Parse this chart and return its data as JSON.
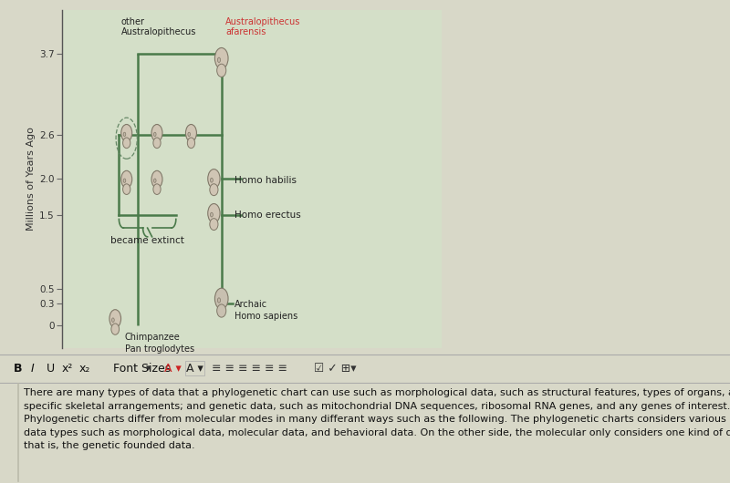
{
  "bg_color": "#d8d8c8",
  "chart_bg": "#d4dfc8",
  "toolbar_bg": "#c8c8b8",
  "text_area_bg": "#e8e8d8",
  "axis_color": "#555555",
  "yticks": [
    0,
    0.3,
    0.5,
    1.5,
    2.0,
    2.6,
    3.7
  ],
  "ylabel": "Millions of Years Ago",
  "tree_color": "#4a7a4a",
  "label_color": "#222222",
  "red_label_color": "#cc3333",
  "labels": {
    "other_australopithecus": "other\nAustralopithecus",
    "australopithecus_afarensis": "Australopithecus\nafarensis",
    "homo_habilis": "Homo habilis",
    "homo_erectus": "Homo erectus",
    "became_extinct": "became extinct",
    "chimpanzee": "Chimpanzee\nPan troglodytes",
    "archaic_homo_sapiens": "Archaic\nHomo sapiens"
  },
  "paragraph_text": "There are many types of data that a phylogenetic chart can use such as morphological data, such as structural features, types of organs, and\nspecific skeletal arrangements; and genetic data, such as mitochondrial DNA sequences, ribosomal RNA genes, and any genes of interest.\nPhylogenetic charts differ from molecular modes in many differant ways such as the following. The phylogenetic charts considers various\ndata types such as morphological data, molecular data, and behavioral data. On the other side, the molecular only considers one kind of data,\nthat is, the genetic founded data.",
  "figsize": [
    8.0,
    5.3
  ],
  "dpi": 100
}
